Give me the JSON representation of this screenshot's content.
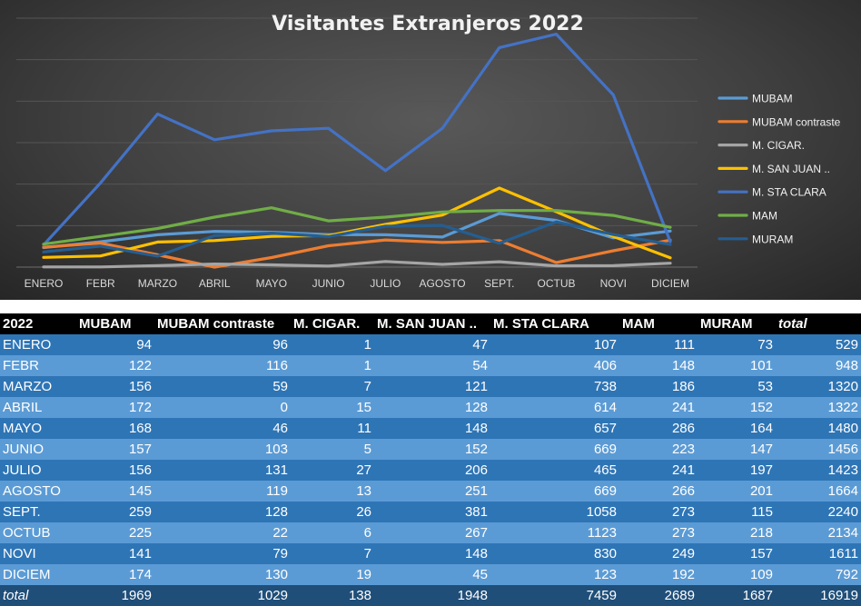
{
  "chart_data": {
    "type": "line",
    "title": "Visitantes Extranjeros 2022",
    "categories": [
      "ENERO",
      "FEBR",
      "MARZO",
      "ABRIL",
      "MAYO",
      "JUNIO",
      "JULIO",
      "AGOSTO",
      "SEPT.",
      "OCTUB",
      "NOVI",
      "DICIEM"
    ],
    "ylim": [
      0,
      1200
    ],
    "legend_position": "right",
    "grid": true,
    "series": [
      {
        "name": "MUBAM",
        "color": "#5b9bd5",
        "values": [
          94,
          122,
          156,
          172,
          168,
          157,
          156,
          145,
          259,
          225,
          141,
          174
        ]
      },
      {
        "name": "MUBAM contraste",
        "color": "#ed7d31",
        "values": [
          96,
          116,
          59,
          0,
          46,
          103,
          131,
          119,
          128,
          22,
          79,
          130
        ]
      },
      {
        "name": "M. CIGAR.",
        "color": "#a5a5a5",
        "values": [
          1,
          1,
          7,
          15,
          11,
          5,
          27,
          13,
          26,
          6,
          7,
          19
        ]
      },
      {
        "name": "M. SAN JUAN ..",
        "color": "#ffc000",
        "values": [
          47,
          54,
          121,
          128,
          148,
          152,
          206,
          251,
          381,
          267,
          148,
          45
        ]
      },
      {
        "name": "M. STA CLARA",
        "color": "#4472c4",
        "values": [
          107,
          406,
          738,
          614,
          657,
          669,
          465,
          669,
          1058,
          1123,
          830,
          123
        ]
      },
      {
        "name": "MAM",
        "color": "#70ad47",
        "values": [
          111,
          148,
          186,
          241,
          286,
          223,
          241,
          266,
          273,
          273,
          249,
          192
        ]
      },
      {
        "name": "MURAM",
        "color": "#255e91",
        "values": [
          73,
          101,
          53,
          152,
          164,
          147,
          197,
          201,
          115,
          218,
          157,
          109
        ]
      }
    ]
  },
  "table": {
    "headers": [
      "2022",
      "MUBAM",
      "MUBAM contraste",
      "M. CIGAR.",
      "M. SAN JUAN ..",
      "M. STA CLARA",
      "MAM",
      "MURAM",
      "total"
    ],
    "rows": [
      [
        "ENERO",
        "94",
        "96",
        "1",
        "47",
        "107",
        "111",
        "73",
        "529"
      ],
      [
        "FEBR",
        "122",
        "116",
        "1",
        "54",
        "406",
        "148",
        "101",
        "948"
      ],
      [
        "MARZO",
        "156",
        "59",
        "7",
        "121",
        "738",
        "186",
        "53",
        "1320"
      ],
      [
        "ABRIL",
        "172",
        "0",
        "15",
        "128",
        "614",
        "241",
        "152",
        "1322"
      ],
      [
        "MAYO",
        "168",
        "46",
        "11",
        "148",
        "657",
        "286",
        "164",
        "1480"
      ],
      [
        "JUNIO",
        "157",
        "103",
        "5",
        "152",
        "669",
        "223",
        "147",
        "1456"
      ],
      [
        "JULIO",
        "156",
        "131",
        "27",
        "206",
        "465",
        "241",
        "197",
        "1423"
      ],
      [
        "AGOSTO",
        "145",
        "119",
        "13",
        "251",
        "669",
        "266",
        "201",
        "1664"
      ],
      [
        "SEPT.",
        "259",
        "128",
        "26",
        "381",
        "1058",
        "273",
        "115",
        "2240"
      ],
      [
        "OCTUB",
        "225",
        "22",
        "6",
        "267",
        "1123",
        "273",
        "218",
        "2134"
      ],
      [
        "NOVI",
        "141",
        "79",
        "7",
        "148",
        "830",
        "249",
        "157",
        "1611"
      ],
      [
        "DICIEM",
        "174",
        "130",
        "19",
        "45",
        "123",
        "192",
        "109",
        "792"
      ]
    ],
    "totals": [
      "total",
      "1969",
      "1029",
      "138",
      "1948",
      "7459",
      "2689",
      "1687",
      "16919"
    ]
  }
}
